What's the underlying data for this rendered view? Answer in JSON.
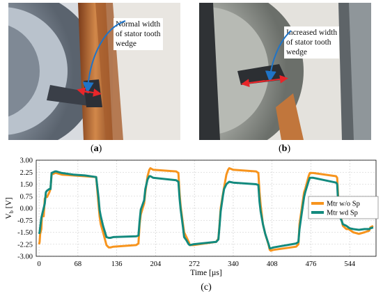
{
  "panels": {
    "a": {
      "label_open": "(",
      "label_letter": "a",
      "label_close": ")",
      "callout_lines": [
        "Normal  width",
        "of stator tooth",
        "wedge"
      ]
    },
    "b": {
      "label_open": "(",
      "label_letter": "b",
      "label_close": ")",
      "callout_lines": [
        "Increased width",
        "of stator tooth",
        "wedge"
      ]
    },
    "c": {
      "label": "(c)"
    }
  },
  "colors": {
    "series_orange": "#F7941D",
    "series_teal": "#138A7E",
    "arrow_red": "#E8262A",
    "arrow_blue": "#1F74C7"
  },
  "chart_data": {
    "type": "line",
    "title": "",
    "xlabel": "Time [µs]",
    "ylabel_main": "V",
    "ylabel_sub": "b",
    "ylabel_unit": " [V]",
    "xlim": [
      -5,
      590
    ],
    "ylim": [
      -3.0,
      3.0
    ],
    "xticks": [
      0,
      68,
      136,
      204,
      272,
      340,
      408,
      476,
      544
    ],
    "yticks": [
      "3.00",
      "2.25",
      "1.50",
      "0.75",
      "0.00",
      "-0.75",
      "-1.50",
      "-2.25",
      "-3.00"
    ],
    "grid": true,
    "legend_position": "right",
    "series": [
      {
        "name": "Mtr w/o Sp",
        "color": "#F7941D",
        "x": [
          0,
          1,
          2,
          4,
          5,
          8,
          10,
          12,
          14,
          18,
          20,
          22,
          28,
          30,
          35,
          40,
          60,
          80,
          100,
          104,
          106,
          108,
          112,
          118,
          122,
          125,
          130,
          170,
          174,
          176,
          178,
          184,
          186,
          190,
          193,
          195,
          200,
          240,
          244,
          246,
          248,
          252,
          254,
          258,
          262,
          264,
          270,
          310,
          314,
          316,
          318,
          322,
          324,
          328,
          331,
          333,
          340,
          380,
          384,
          386,
          388,
          392,
          396,
          402,
          404,
          406,
          410,
          450,
          454,
          456,
          458,
          462,
          464,
          466,
          472,
          474,
          480,
          520,
          522,
          524,
          526,
          530,
          532,
          538,
          542,
          544,
          550,
          560,
          570,
          578,
          580,
          585
        ],
        "y": [
          -2.25,
          -2.1,
          -1.6,
          -1.3,
          -0.5,
          -0.5,
          0.6,
          0.7,
          0.7,
          1.0,
          1.2,
          2.1,
          2.2,
          2.2,
          2.15,
          2.1,
          2.05,
          2.0,
          1.95,
          0.3,
          -0.5,
          -1.0,
          -1.5,
          -2.3,
          -2.45,
          -2.45,
          -2.4,
          -2.3,
          -2.2,
          -1.0,
          -0.4,
          0.3,
          1.0,
          2.0,
          2.4,
          2.5,
          2.4,
          2.3,
          2.2,
          0.9,
          0.1,
          -1.0,
          -1.5,
          -1.8,
          -2.1,
          -2.3,
          -2.3,
          -2.1,
          -1.9,
          -1.0,
          0.0,
          0.9,
          1.3,
          2.1,
          2.4,
          2.5,
          2.4,
          2.3,
          2.2,
          1.0,
          0.2,
          -1.0,
          -1.6,
          -2.3,
          -2.6,
          -2.65,
          -2.6,
          -2.4,
          -2.25,
          -1.0,
          -0.5,
          0.5,
          1.0,
          1.2,
          2.0,
          2.2,
          2.2,
          2.0,
          1.9,
          0.5,
          -0.2,
          -0.8,
          -1.1,
          -1.3,
          -1.3,
          -1.35,
          -1.5,
          -1.6,
          -1.5,
          -1.4,
          -1.2,
          -1.1
        ]
      },
      {
        "name": "Mtr wd Sp",
        "color": "#138A7E",
        "x": [
          0,
          1,
          2,
          4,
          6,
          8,
          10,
          12,
          14,
          18,
          20,
          22,
          28,
          30,
          35,
          40,
          60,
          80,
          100,
          104,
          106,
          108,
          112,
          118,
          122,
          125,
          130,
          170,
          174,
          176,
          178,
          184,
          186,
          190,
          193,
          195,
          200,
          240,
          244,
          246,
          248,
          252,
          254,
          258,
          262,
          264,
          270,
          310,
          314,
          316,
          318,
          322,
          324,
          328,
          331,
          333,
          340,
          380,
          384,
          386,
          388,
          392,
          396,
          402,
          404,
          406,
          410,
          450,
          454,
          456,
          458,
          462,
          464,
          466,
          472,
          474,
          480,
          520,
          522,
          524,
          526,
          530,
          532,
          538,
          542,
          544,
          550,
          560,
          570,
          578,
          580,
          585
        ],
        "y": [
          -1.6,
          -1.5,
          -1.2,
          -0.6,
          -0.3,
          0.0,
          0.3,
          1.0,
          1.1,
          1.2,
          1.2,
          2.2,
          2.3,
          2.3,
          2.25,
          2.2,
          2.1,
          2.05,
          1.95,
          0.7,
          -0.1,
          -0.5,
          -1.1,
          -1.8,
          -1.85,
          -1.85,
          -1.8,
          -1.75,
          -1.7,
          -0.8,
          -0.1,
          0.5,
          1.2,
          1.8,
          2.0,
          2.0,
          1.9,
          1.75,
          1.65,
          0.6,
          -0.1,
          -1.2,
          -1.8,
          -2.0,
          -2.25,
          -2.3,
          -2.25,
          -2.1,
          -1.95,
          -1.1,
          -0.2,
          0.8,
          1.2,
          1.5,
          1.6,
          1.65,
          1.6,
          1.5,
          1.45,
          0.4,
          -0.2,
          -1.0,
          -1.6,
          -2.25,
          -2.5,
          -2.5,
          -2.45,
          -2.2,
          -2.1,
          -1.3,
          -0.8,
          0.2,
          0.7,
          1.0,
          1.7,
          1.9,
          1.9,
          1.6,
          1.5,
          0.1,
          -0.5,
          -0.8,
          -1.0,
          -1.1,
          -1.2,
          -1.25,
          -1.3,
          -1.35,
          -1.3,
          -1.3,
          -1.25,
          -1.2
        ]
      }
    ]
  }
}
